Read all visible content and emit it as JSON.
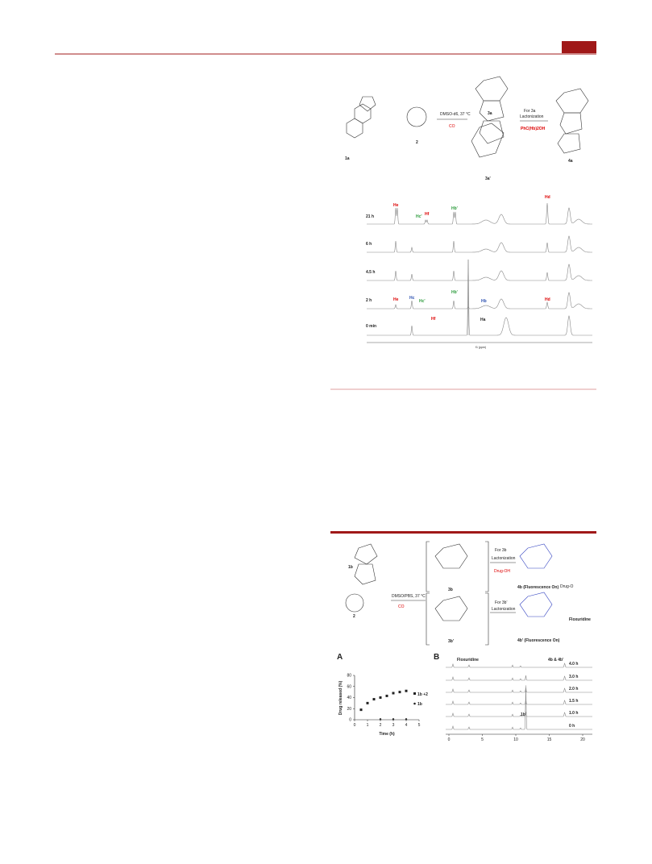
{
  "scheme1": {
    "compounds": [
      "1a",
      "2",
      "3a",
      "3a'",
      "4a"
    ],
    "conditions": "DMSO-d6, 37 °C",
    "byproduct": "CO",
    "step2": "For 3a",
    "step2b": "Lactonization",
    "release": "PhC(Hb)2OH"
  },
  "nmr": {
    "traces": [
      "21 h",
      "6 h",
      "4.5 h",
      "2 h",
      "0 min"
    ],
    "peaks": [
      "He",
      "Hc'",
      "Hf",
      "Hb'",
      "Hd",
      "He",
      "Hc",
      "Hc'",
      "Hb'",
      "Hb",
      "Hd",
      "Hf",
      "Ha"
    ],
    "xlabel": "f1 (ppm)"
  },
  "scheme2": {
    "compounds": [
      "1b",
      "2",
      "3b",
      "3b'",
      "4b (Fluorescence On)",
      "4b' (Fluorescence On)"
    ],
    "conditions": "DMSO/PBS, 37 °C",
    "byproduct": "CO",
    "step_a": "For 3b",
    "step_b": "For 3b'",
    "lact": "Lactonization",
    "release": "Drug-OH",
    "drug": "Drug-O",
    "name": "Floxuridine"
  },
  "panel_a": {
    "label": "A",
    "ylabel": "Drug released (%)",
    "xlabel": "Time (h)",
    "xlim": [
      0,
      5
    ],
    "ylim": [
      0,
      80
    ],
    "xticks": [
      0,
      1,
      2,
      3,
      4,
      5
    ],
    "yticks": [
      0,
      20,
      40,
      60,
      80
    ],
    "series": [
      {
        "name": "1b +2",
        "x": [
          0.5,
          1,
          1.5,
          2,
          2.5,
          3,
          3.5,
          4
        ],
        "values": [
          18,
          30,
          37,
          40,
          43,
          48,
          50,
          52
        ]
      },
      {
        "name": "1b",
        "x": [
          2,
          3,
          4
        ],
        "values": [
          1,
          1,
          1
        ]
      }
    ]
  },
  "panel_b": {
    "label": "B",
    "xlim": [
      0,
      20
    ],
    "xticks": [
      0,
      5,
      10,
      15,
      20
    ],
    "traces": [
      "4.0 h",
      "3.0 h",
      "2.0 h",
      "1.5 h",
      "1.0 h",
      "0 h"
    ],
    "peak1": "Floxuridine",
    "peak2": "4b & 4b'",
    "peak3": "1b"
  }
}
